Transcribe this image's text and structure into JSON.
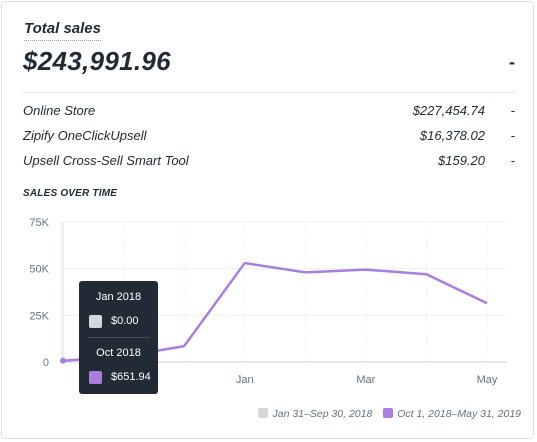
{
  "card": {
    "title": "Total sales",
    "total": "$243,991.96",
    "total_change": "-",
    "rows": [
      {
        "name": "Online Store",
        "value": "$227,454.74",
        "change": "-"
      },
      {
        "name": "Zipify OneClickUpsell",
        "value": "$16,378.02",
        "change": "-"
      },
      {
        "name": "Upsell Cross-Sell Smart Tool",
        "value": "$159.20",
        "change": "-"
      }
    ],
    "section_title": "SALES OVER TIME"
  },
  "tooltip": {
    "current_label": "Jan 2018",
    "current_value": "$0.00",
    "previous_label": "Oct 2018",
    "previous_value": "$651.94"
  },
  "colors": {
    "current_series": "#d4d8dc",
    "previous_series": "#a97ee0"
  },
  "chart_data": {
    "type": "line",
    "title": "SALES OVER TIME",
    "xlabel": "",
    "ylabel": "",
    "x_tick_labels": [
      "Jan",
      "Mar",
      "May"
    ],
    "y_tick_labels": [
      "75K",
      "50K",
      "25K",
      "0"
    ],
    "ylim": [
      0,
      75000
    ],
    "grid": true,
    "legend_position": "bottom-right",
    "series": [
      {
        "name": "Jan 31–Sep 30, 2018",
        "color": "#d4d8dc",
        "values": []
      },
      {
        "name": "Oct 1, 2018–May 31, 2019",
        "color": "#a97ee0",
        "x": [
          "Oct 2018",
          "Nov 2018",
          "Dec 2018",
          "Jan 2019",
          "Feb 2019",
          "Mar 2019",
          "Apr 2019",
          "May 2019"
        ],
        "values": [
          652,
          3000,
          8500,
          53000,
          48000,
          49500,
          47000,
          31500
        ]
      }
    ]
  }
}
